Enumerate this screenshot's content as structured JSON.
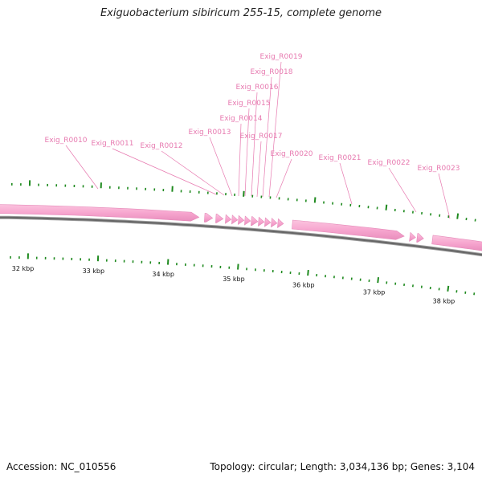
{
  "title": "Exiguobacterium sibiricum 255-15, complete genome",
  "footer": {
    "accession": "Accession: NC_010556",
    "summary": "Topology: circular; Length: 3,034,136 bp; Genes: 3,104"
  },
  "colors": {
    "feature_fill": "#f7a6cf",
    "feature_label": "#e77ab0",
    "backbone": "#666666",
    "tick": "#1f8a1f"
  },
  "scale_labels": [
    "32 kbp",
    "33 kbp",
    "34 kbp",
    "35 kbp",
    "36 kbp",
    "37 kbp",
    "38 kbp"
  ],
  "features": [
    {
      "label": "Exig_R0010"
    },
    {
      "label": "Exig_R0011"
    },
    {
      "label": "Exig_R0012"
    },
    {
      "label": "Exig_R0013"
    },
    {
      "label": "Exig_R0014"
    },
    {
      "label": "Exig_R0015"
    },
    {
      "label": "Exig_R0016"
    },
    {
      "label": "Exig_R0017"
    },
    {
      "label": "Exig_R0018"
    },
    {
      "label": "Exig_R0019"
    },
    {
      "label": "Exig_R0020"
    },
    {
      "label": "Exig_R0021"
    },
    {
      "label": "Exig_R0022"
    },
    {
      "label": "Exig_R0023"
    }
  ]
}
